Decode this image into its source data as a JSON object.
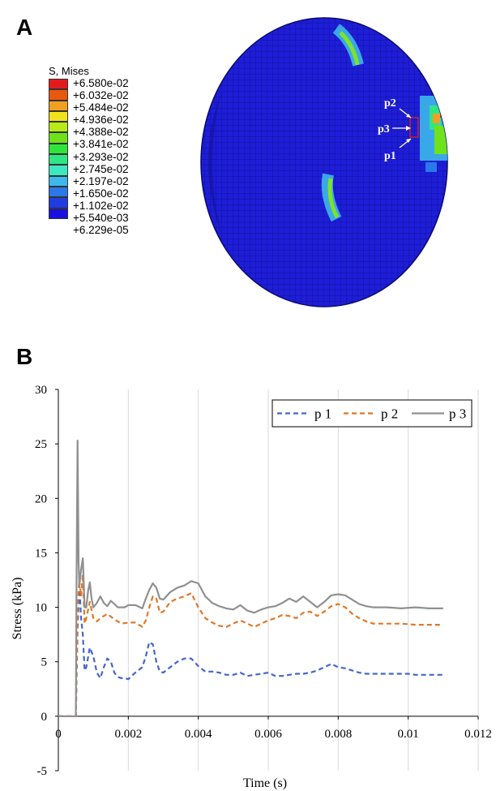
{
  "panel_a": {
    "letter": "A",
    "legend": {
      "title": "S, Mises",
      "colors": [
        "#e31a1c",
        "#e8580f",
        "#f0a020",
        "#f2e21a",
        "#b8ea1a",
        "#6ee21a",
        "#2ee63a",
        "#2ee684",
        "#3ce8c0",
        "#3cb8ec",
        "#2a78ea",
        "#1e3ce0",
        "#1a10dd"
      ],
      "labels": [
        "+6.580e-02",
        "+6.032e-02",
        "+5.484e-02",
        "+4.936e-02",
        "+4.388e-02",
        "+3.841e-02",
        "+3.293e-02",
        "+2.745e-02",
        "+2.197e-02",
        "+1.650e-02",
        "+1.102e-02",
        "+5.540e-03",
        "+6.229e-05"
      ]
    },
    "point_labels": [
      "p2",
      "p3",
      "p1"
    ]
  },
  "panel_b": {
    "letter": "B"
  },
  "chart_data": {
    "type": "line",
    "title": "",
    "xlabel": "Time (s)",
    "ylabel": "Stress (kPa)",
    "xlim": [
      0,
      0.012
    ],
    "ylim": [
      -5,
      30
    ],
    "xticks": [
      0,
      0.002,
      0.004,
      0.006,
      0.008,
      0.01,
      0.012
    ],
    "xtick_labels": [
      "0",
      "0.002",
      "0.004",
      "0.006",
      "0.008",
      "0.01",
      "0.012"
    ],
    "yticks": [
      -5,
      0,
      5,
      10,
      15,
      20,
      25,
      30
    ],
    "ytick_labels": [
      "-5",
      "0",
      "5",
      "10",
      "15",
      "20",
      "25",
      "30"
    ],
    "grid": "vertical",
    "legend_position": "top-right",
    "series": [
      {
        "name": "p 1",
        "color": "#4466cc",
        "dash": "dashed",
        "x": [
          0,
          0.0005,
          0.00055,
          0.0006,
          0.00065,
          0.0007,
          0.00075,
          0.0008,
          0.0009,
          0.001,
          0.0011,
          0.0012,
          0.0013,
          0.0014,
          0.0015,
          0.0016,
          0.0017,
          0.0018,
          0.0019,
          0.002,
          0.0022,
          0.0024,
          0.0025,
          0.0026,
          0.0027,
          0.0028,
          0.0029,
          0.003,
          0.0032,
          0.0034,
          0.0036,
          0.0038,
          0.004,
          0.0042,
          0.0044,
          0.0046,
          0.0048,
          0.005,
          0.0052,
          0.0054,
          0.0056,
          0.0058,
          0.006,
          0.0062,
          0.0064,
          0.0066,
          0.0068,
          0.007,
          0.0072,
          0.0074,
          0.0076,
          0.0078,
          0.008,
          0.0082,
          0.0084,
          0.0086,
          0.0088,
          0.009,
          0.0092,
          0.0094,
          0.0096,
          0.0098,
          0.01,
          0.0102,
          0.0104,
          0.0106,
          0.0108,
          0.011
        ],
        "y": [
          0,
          0,
          8,
          12,
          9,
          7.5,
          4.2,
          4.5,
          6.3,
          5.5,
          4.0,
          3.5,
          4.5,
          5.3,
          5.0,
          4.0,
          3.6,
          3.5,
          3.5,
          3.4,
          4.0,
          4.5,
          5.5,
          6.8,
          6.6,
          5.0,
          4.1,
          4.0,
          4.5,
          5.0,
          5.3,
          5.3,
          4.6,
          4.1,
          4.1,
          4.0,
          3.8,
          3.8,
          4.0,
          3.7,
          3.8,
          3.9,
          4.0,
          3.7,
          3.7,
          3.8,
          3.9,
          3.9,
          4.0,
          4.2,
          4.5,
          4.8,
          4.5,
          4.4,
          4.2,
          4.0,
          3.9,
          3.9,
          3.9,
          3.9,
          3.9,
          3.9,
          3.9,
          3.8,
          3.8,
          3.8,
          3.8,
          3.8
        ]
      },
      {
        "name": "p 2",
        "color": "#e07828",
        "dash": "dashed",
        "x": [
          0,
          0.0005,
          0.00055,
          0.0006,
          0.00065,
          0.0007,
          0.00075,
          0.0008,
          0.0009,
          0.001,
          0.0011,
          0.0012,
          0.0014,
          0.0016,
          0.0018,
          0.002,
          0.0022,
          0.0024,
          0.0025,
          0.0026,
          0.0027,
          0.0028,
          0.0029,
          0.003,
          0.0032,
          0.0034,
          0.0036,
          0.0038,
          0.004,
          0.0042,
          0.0044,
          0.0046,
          0.0048,
          0.005,
          0.0052,
          0.0054,
          0.0056,
          0.0058,
          0.006,
          0.0062,
          0.0064,
          0.0066,
          0.0068,
          0.007,
          0.0072,
          0.0074,
          0.0076,
          0.0078,
          0.008,
          0.0082,
          0.0084,
          0.0086,
          0.0088,
          0.009,
          0.0094,
          0.0098,
          0.0102,
          0.0106,
          0.011
        ],
        "y": [
          0,
          0,
          10,
          12.5,
          11,
          13,
          8.5,
          9.0,
          10.5,
          9.0,
          8.7,
          9.0,
          9.4,
          8.9,
          8.5,
          8.6,
          8.6,
          8.2,
          8.8,
          10.0,
          11.0,
          10.8,
          9.5,
          9.6,
          10.5,
          10.8,
          11.0,
          11.3,
          10.0,
          9.0,
          8.6,
          8.3,
          8.2,
          8.5,
          8.8,
          8.5,
          8.2,
          8.5,
          8.8,
          9.0,
          9.3,
          9.2,
          9.0,
          9.5,
          9.6,
          9.2,
          9.6,
          10.1,
          10.3,
          10.0,
          9.4,
          9.0,
          8.7,
          8.5,
          8.5,
          8.5,
          8.4,
          8.4,
          8.4
        ]
      },
      {
        "name": "p 3",
        "color": "#909090",
        "dash": "solid",
        "x": [
          0,
          0.0005,
          0.00052,
          0.00055,
          0.00058,
          0.0006,
          0.00065,
          0.0007,
          0.00075,
          0.0008,
          0.00085,
          0.0009,
          0.00095,
          0.001,
          0.0011,
          0.0012,
          0.0013,
          0.0014,
          0.0015,
          0.0016,
          0.0017,
          0.0018,
          0.0019,
          0.002,
          0.0022,
          0.0024,
          0.0025,
          0.0026,
          0.0027,
          0.0028,
          0.0029,
          0.003,
          0.0032,
          0.0034,
          0.0036,
          0.0038,
          0.004,
          0.0042,
          0.0044,
          0.0046,
          0.0048,
          0.005,
          0.0052,
          0.0054,
          0.0056,
          0.0058,
          0.006,
          0.0062,
          0.0064,
          0.0066,
          0.0068,
          0.007,
          0.0072,
          0.0074,
          0.0076,
          0.0078,
          0.008,
          0.0082,
          0.0084,
          0.0086,
          0.0088,
          0.009,
          0.0094,
          0.0098,
          0.0102,
          0.0106,
          0.011
        ],
        "y": [
          0,
          0,
          12,
          25.3,
          14,
          12,
          13.5,
          14.5,
          10,
          10,
          11.5,
          12.3,
          10.8,
          10.0,
          10.4,
          11.0,
          10.4,
          10.1,
          10.6,
          10.3,
          10.0,
          10.0,
          10.0,
          10.2,
          10.2,
          9.9,
          10.8,
          11.6,
          12.2,
          11.8,
          10.8,
          10.7,
          11.4,
          11.8,
          12.0,
          12.4,
          12.2,
          11.0,
          10.4,
          10.1,
          9.9,
          9.8,
          10.2,
          9.7,
          9.5,
          9.8,
          10.0,
          10.1,
          10.4,
          10.8,
          10.5,
          11.0,
          10.5,
          10.0,
          10.5,
          11.1,
          11.2,
          11.1,
          10.7,
          10.3,
          10.1,
          10.0,
          10.0,
          9.9,
          10.0,
          9.9,
          9.9
        ]
      }
    ]
  }
}
